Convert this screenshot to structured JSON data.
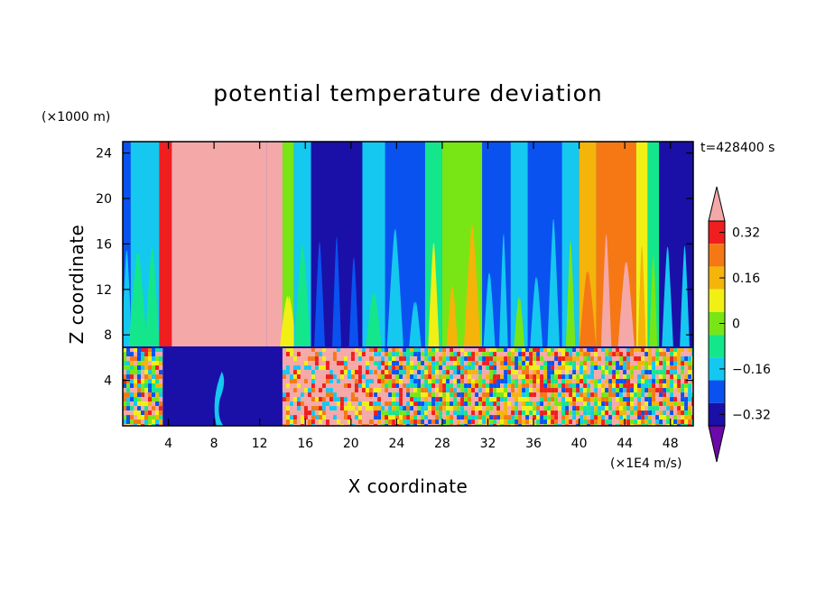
{
  "chart_data": {
    "type": "heatmap",
    "title": "potential temperature deviation",
    "xlabel": "X coordinate",
    "ylabel": "Z coordinate",
    "x_unit": "(×1E4 m/s)",
    "y_unit": "(×1000 m)",
    "time_label": "t=428400 s",
    "xlim": [
      0,
      50
    ],
    "ylim": [
      0,
      25
    ],
    "x_ticks": [
      4,
      8,
      12,
      16,
      20,
      24,
      28,
      32,
      36,
      40,
      44,
      48
    ],
    "y_ticks": [
      4,
      8,
      12,
      16,
      20,
      24
    ],
    "layer_top": 6.9,
    "colorbar": {
      "levels": [
        -0.4,
        -0.32,
        -0.24,
        -0.16,
        -0.08,
        0,
        0.08,
        0.16,
        0.24,
        0.32,
        0.4
      ],
      "labels": [
        "0.32",
        "0.16",
        "0",
        "−0.16",
        "−0.32"
      ],
      "label_values": [
        0.32,
        0.16,
        0,
        -0.16,
        -0.32
      ],
      "colors": [
        "#6a0aa8",
        "#1a10a8",
        "#0a52f0",
        "#14c8f0",
        "#14e68c",
        "#78e614",
        "#f0f014",
        "#f5b40a",
        "#f57814",
        "#f01e1e",
        "#f5a8a8"
      ]
    },
    "upper_layer_columns": [
      {
        "x0": 0.0,
        "x1": 0.7,
        "value": -0.3
      },
      {
        "x0": 0.7,
        "x1": 3.2,
        "value": -0.22
      },
      {
        "x0": 3.2,
        "x1": 4.3,
        "value": 0.3
      },
      {
        "x0": 4.3,
        "x1": 12.6,
        "value": 0.5
      },
      {
        "x0": 12.6,
        "x1": 14.0,
        "value": 0.33
      },
      {
        "x0": 14.0,
        "x1": 15.0,
        "value": -0.05
      },
      {
        "x0": 15.0,
        "x1": 16.5,
        "value": -0.2
      },
      {
        "x0": 16.5,
        "x1": 21.0,
        "value": -0.35
      },
      {
        "x0": 21.0,
        "x1": 23.0,
        "value": -0.2
      },
      {
        "x0": 23.0,
        "x1": 26.5,
        "value": -0.3
      },
      {
        "x0": 26.5,
        "x1": 28.0,
        "value": -0.1
      },
      {
        "x0": 28.0,
        "x1": 31.5,
        "value": -0.02
      },
      {
        "x0": 31.5,
        "x1": 34.0,
        "value": -0.3
      },
      {
        "x0": 34.0,
        "x1": 35.5,
        "value": -0.18
      },
      {
        "x0": 35.5,
        "x1": 38.5,
        "value": -0.3
      },
      {
        "x0": 38.5,
        "x1": 40.0,
        "value": -0.18
      },
      {
        "x0": 40.0,
        "x1": 41.5,
        "value": 0.1
      },
      {
        "x0": 41.5,
        "x1": 45.0,
        "value": 0.22
      },
      {
        "x0": 45.0,
        "x1": 46.0,
        "value": 0.0
      },
      {
        "x0": 46.0,
        "x1": 47.0,
        "value": -0.15
      },
      {
        "x0": 47.0,
        "x1": 50.0,
        "value": -0.33
      }
    ],
    "lower_layer_segments": [
      {
        "x0": 0.0,
        "x1": 3.5,
        "pattern": "turbulent"
      },
      {
        "x0": 3.5,
        "x1": 14.0,
        "value": -0.38
      },
      {
        "x0": 14.0,
        "x1": 22.0,
        "pattern": "turbulent-warm"
      },
      {
        "x0": 22.0,
        "x1": 50.0,
        "pattern": "turbulent"
      }
    ]
  }
}
